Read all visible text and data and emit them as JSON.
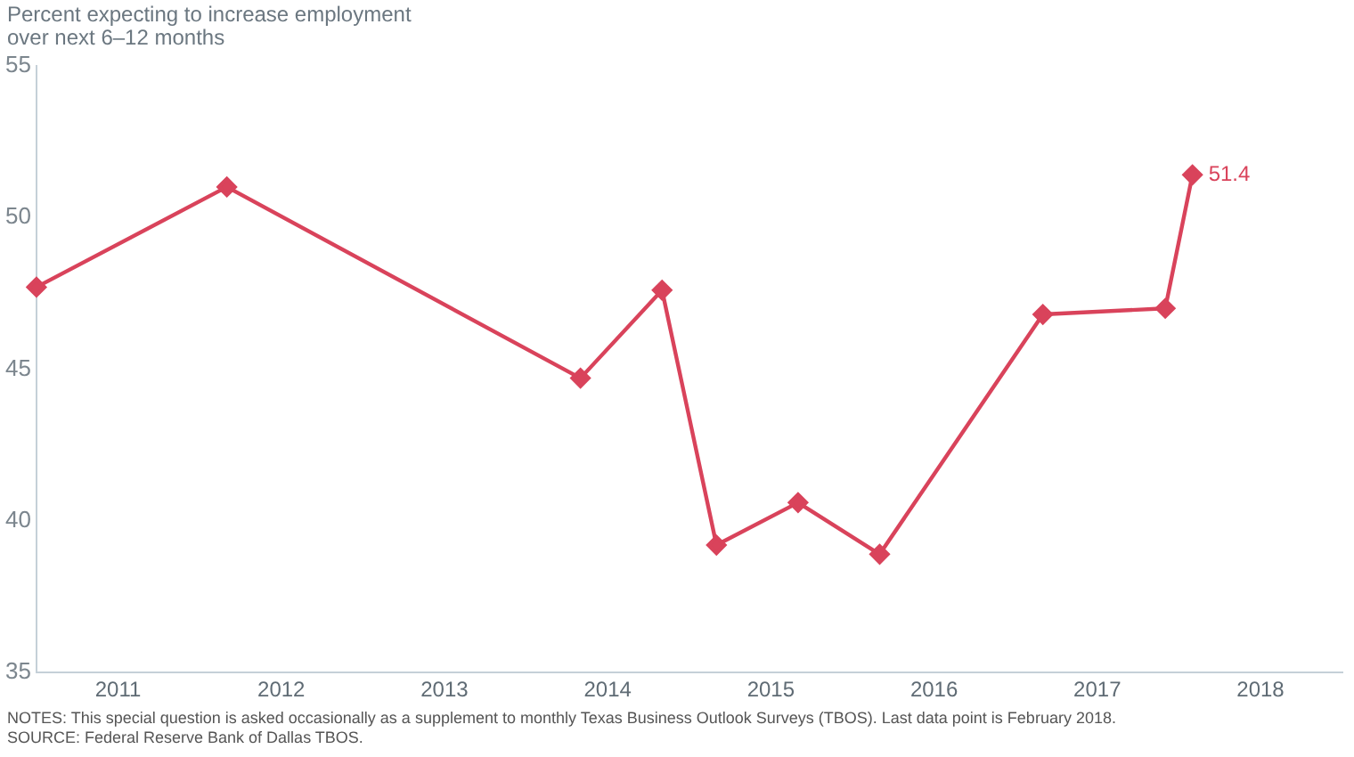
{
  "chart_data": {
    "type": "line",
    "ylabel": "Percent expecting to increase employment over next 6–12 months",
    "x": [
      "2011-01",
      "2012-03",
      "2014-05",
      "2014-11",
      "2015-03",
      "2015-09",
      "2016-03",
      "2017-03",
      "2017-12",
      "2018-02"
    ],
    "series": [
      {
        "color": "#d9435b",
        "values": [
          47.7,
          51.0,
          44.7,
          47.6,
          39.2,
          40.6,
          38.9,
          46.8,
          47.0,
          51.4
        ],
        "value_labels": [
          null,
          null,
          null,
          null,
          null,
          null,
          null,
          null,
          null,
          "51.4"
        ]
      }
    ],
    "xlim": [
      "2011-01",
      "2019-01"
    ],
    "xticks": [
      {
        "value": "2011-07",
        "label": "2011"
      },
      {
        "value": "2012-07",
        "label": "2012"
      },
      {
        "value": "2013-07",
        "label": "2013"
      },
      {
        "value": "2014-07",
        "label": "2014"
      },
      {
        "value": "2015-07",
        "label": "2015"
      },
      {
        "value": "2016-07",
        "label": "2016"
      },
      {
        "value": "2017-07",
        "label": "2017"
      },
      {
        "value": "2018-07",
        "label": "2018"
      }
    ],
    "ylim": [
      35,
      55
    ],
    "yticks": [
      35,
      40,
      45,
      50,
      55
    ],
    "grid": false,
    "legend": false,
    "marker": "diamond",
    "line_style": "solid",
    "annotations": [
      "NOTES: This special question is asked occasionally as a supplement to monthly Texas Business Outlook Surveys (TBOS). Last data point is February 2018.",
      "SOURCE: Federal Reserve Bank of Dallas TBOS."
    ]
  }
}
